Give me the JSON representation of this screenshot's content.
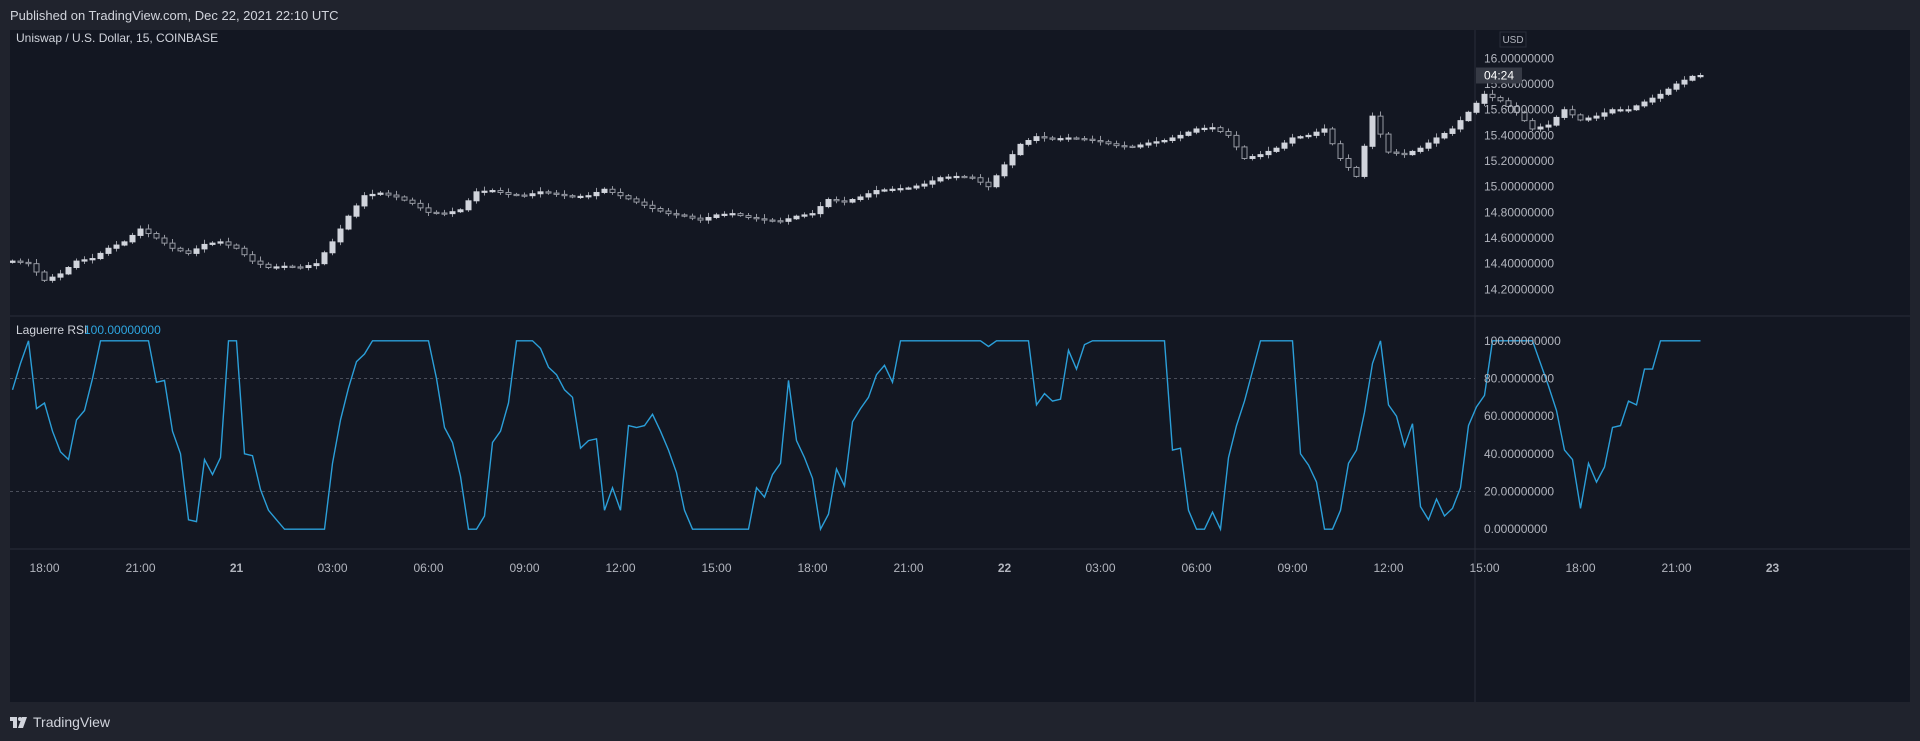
{
  "header": {
    "published": "Published on TradingView.com, Dec 22, 2021 22:10 UTC"
  },
  "footer": {
    "brand": "TradingView"
  },
  "colors": {
    "background": "#131722",
    "frame": "#20232d",
    "candle": "#d1d4dc",
    "rsi_line": "#2b9fd9",
    "rsi_value": "#2ea6e0",
    "text": "#b2b5be",
    "grid_dashed": "#4a4e5a"
  },
  "chart_data": [
    {
      "type": "candlestick",
      "title": "Uniswap / U.S. Dollar, 15, COINBASE",
      "currency": "USD",
      "countdown": "04:24",
      "ylim": [
        14.07,
        16.05
      ],
      "y_ticks": [
        "14.20000000",
        "14.40000000",
        "14.60000000",
        "14.80000000",
        "15.00000000",
        "15.20000000",
        "15.40000000",
        "15.60000000",
        "15.80000000",
        "16.00000000"
      ],
      "close_anchors": [
        [
          0,
          14.42
        ],
        [
          2,
          14.4
        ],
        [
          4,
          14.27
        ],
        [
          6,
          14.32
        ],
        [
          8,
          14.42
        ],
        [
          10,
          14.44
        ],
        [
          12,
          14.52
        ],
        [
          14,
          14.57
        ],
        [
          16,
          14.67
        ],
        [
          18,
          14.6
        ],
        [
          20,
          14.52
        ],
        [
          22,
          14.48
        ],
        [
          24,
          14.55
        ],
        [
          26,
          14.57
        ],
        [
          28,
          14.52
        ],
        [
          30,
          14.42
        ],
        [
          32,
          14.37
        ],
        [
          34,
          14.38
        ],
        [
          36,
          14.37
        ],
        [
          38,
          14.4
        ],
        [
          40,
          14.57
        ],
        [
          42,
          14.77
        ],
        [
          44,
          14.93
        ],
        [
          46,
          14.95
        ],
        [
          48,
          14.92
        ],
        [
          50,
          14.87
        ],
        [
          52,
          14.8
        ],
        [
          54,
          14.79
        ],
        [
          56,
          14.82
        ],
        [
          58,
          14.96
        ],
        [
          60,
          14.97
        ],
        [
          62,
          14.94
        ],
        [
          64,
          14.93
        ],
        [
          66,
          14.96
        ],
        [
          68,
          14.94
        ],
        [
          70,
          14.92
        ],
        [
          72,
          14.93
        ],
        [
          74,
          14.98
        ],
        [
          76,
          14.93
        ],
        [
          78,
          14.88
        ],
        [
          80,
          14.83
        ],
        [
          82,
          14.79
        ],
        [
          84,
          14.77
        ],
        [
          86,
          14.74
        ],
        [
          88,
          14.78
        ],
        [
          90,
          14.79
        ],
        [
          92,
          14.76
        ],
        [
          94,
          14.74
        ],
        [
          96,
          14.73
        ],
        [
          98,
          14.77
        ],
        [
          100,
          14.79
        ],
        [
          102,
          14.9
        ],
        [
          104,
          14.88
        ],
        [
          106,
          14.92
        ],
        [
          108,
          14.97
        ],
        [
          110,
          14.98
        ],
        [
          112,
          14.99
        ],
        [
          114,
          15.02
        ],
        [
          116,
          15.07
        ],
        [
          118,
          15.08
        ],
        [
          120,
          15.07
        ],
        [
          122,
          15.0
        ],
        [
          124,
          15.17
        ],
        [
          126,
          15.33
        ],
        [
          128,
          15.39
        ],
        [
          130,
          15.37
        ],
        [
          132,
          15.38
        ],
        [
          134,
          15.37
        ],
        [
          136,
          15.35
        ],
        [
          138,
          15.32
        ],
        [
          140,
          15.31
        ],
        [
          142,
          15.34
        ],
        [
          144,
          15.36
        ],
        [
          146,
          15.4
        ],
        [
          148,
          15.45
        ],
        [
          150,
          15.46
        ],
        [
          152,
          15.4
        ],
        [
          154,
          15.22
        ],
        [
          156,
          15.25
        ],
        [
          158,
          15.3
        ],
        [
          160,
          15.38
        ],
        [
          162,
          15.4
        ],
        [
          164,
          15.45
        ],
        [
          166,
          15.22
        ],
        [
          168,
          15.08
        ],
        [
          170,
          15.55
        ],
        [
          172,
          15.27
        ],
        [
          174,
          15.25
        ],
        [
          176,
          15.3
        ],
        [
          178,
          15.38
        ],
        [
          180,
          15.45
        ],
        [
          182,
          15.58
        ],
        [
          184,
          15.72
        ],
        [
          186,
          15.67
        ],
        [
          188,
          15.58
        ],
        [
          190,
          15.45
        ],
        [
          192,
          15.48
        ],
        [
          194,
          15.6
        ],
        [
          196,
          15.52
        ],
        [
          198,
          15.55
        ],
        [
          200,
          15.6
        ],
        [
          202,
          15.6
        ],
        [
          204,
          15.66
        ],
        [
          206,
          15.72
        ],
        [
          208,
          15.8
        ],
        [
          210,
          15.86
        ]
      ],
      "x_ticks": [
        "18:00",
        "21:00",
        "21",
        "03:00",
        "06:00",
        "09:00",
        "12:00",
        "15:00",
        "18:00",
        "21:00",
        "22",
        "03:00",
        "06:00",
        "09:00",
        "12:00",
        "15:00",
        "18:00",
        "21:00",
        "23"
      ],
      "x_ticks_bold": [
        "21",
        "22",
        "23"
      ],
      "x_tick_bars": [
        4,
        16,
        28,
        40,
        52,
        64,
        76,
        88,
        100,
        112,
        124,
        136,
        148,
        160,
        172,
        184,
        196,
        208,
        220
      ],
      "bars": 212
    },
    {
      "type": "line",
      "title": "Laguerre RSI",
      "last_value": "100.00000000",
      "ylim": [
        -10,
        110
      ],
      "y_ticks": [
        "0.00000000",
        "20.00000000",
        "40.00000000",
        "60.00000000",
        "80.00000000",
        "100.00000000"
      ],
      "levels": [
        80,
        20
      ],
      "values_anchors": [
        [
          0,
          74
        ],
        [
          1,
          88
        ],
        [
          2,
          100
        ],
        [
          3,
          64
        ],
        [
          4,
          67
        ],
        [
          5,
          52
        ],
        [
          6,
          41
        ],
        [
          7,
          37
        ],
        [
          8,
          58
        ],
        [
          9,
          63
        ],
        [
          10,
          80
        ],
        [
          11,
          100
        ],
        [
          17,
          100
        ],
        [
          18,
          78
        ],
        [
          19,
          79
        ],
        [
          20,
          52
        ],
        [
          21,
          40
        ],
        [
          22,
          5
        ],
        [
          23,
          4
        ],
        [
          24,
          37
        ],
        [
          25,
          29
        ],
        [
          26,
          38
        ],
        [
          27,
          100
        ],
        [
          28,
          100
        ],
        [
          29,
          40
        ],
        [
          30,
          39
        ],
        [
          31,
          21
        ],
        [
          32,
          10
        ],
        [
          33,
          5
        ],
        [
          34,
          0
        ],
        [
          39,
          0
        ],
        [
          40,
          35
        ],
        [
          41,
          58
        ],
        [
          42,
          75
        ],
        [
          43,
          89
        ],
        [
          44,
          93
        ],
        [
          45,
          100
        ],
        [
          52,
          100
        ],
        [
          53,
          80
        ],
        [
          54,
          54
        ],
        [
          55,
          46
        ],
        [
          56,
          28
        ],
        [
          57,
          0
        ],
        [
          58,
          0
        ],
        [
          59,
          7
        ],
        [
          60,
          46
        ],
        [
          61,
          52
        ],
        [
          62,
          67
        ],
        [
          63,
          100
        ],
        [
          65,
          100
        ],
        [
          66,
          96
        ],
        [
          67,
          86
        ],
        [
          68,
          82
        ],
        [
          69,
          74
        ],
        [
          70,
          70
        ],
        [
          71,
          43
        ],
        [
          72,
          47
        ],
        [
          73,
          48
        ],
        [
          74,
          10
        ],
        [
          75,
          22
        ],
        [
          76,
          10
        ],
        [
          77,
          55
        ],
        [
          78,
          54
        ],
        [
          79,
          55
        ],
        [
          80,
          61
        ],
        [
          81,
          52
        ],
        [
          82,
          42
        ],
        [
          83,
          30
        ],
        [
          84,
          10
        ],
        [
          85,
          0
        ],
        [
          92,
          0
        ],
        [
          93,
          22
        ],
        [
          94,
          17
        ],
        [
          95,
          29
        ],
        [
          96,
          35
        ],
        [
          97,
          79
        ],
        [
          98,
          47
        ],
        [
          99,
          38
        ],
        [
          100,
          27
        ],
        [
          101,
          0
        ],
        [
          102,
          8
        ],
        [
          103,
          32
        ],
        [
          104,
          23
        ],
        [
          105,
          57
        ],
        [
          106,
          64
        ],
        [
          107,
          70
        ],
        [
          108,
          82
        ],
        [
          109,
          87
        ],
        [
          110,
          78
        ],
        [
          111,
          100
        ],
        [
          121,
          100
        ],
        [
          122,
          97
        ],
        [
          123,
          100
        ],
        [
          127,
          100
        ],
        [
          128,
          66
        ],
        [
          129,
          72
        ],
        [
          130,
          68
        ],
        [
          131,
          69
        ],
        [
          132,
          95
        ],
        [
          133,
          85
        ],
        [
          134,
          98
        ],
        [
          135,
          100
        ],
        [
          144,
          100
        ],
        [
          145,
          42
        ],
        [
          146,
          43
        ],
        [
          147,
          10
        ],
        [
          148,
          0
        ],
        [
          149,
          0
        ],
        [
          150,
          9
        ],
        [
          151,
          0
        ],
        [
          152,
          38
        ],
        [
          153,
          55
        ],
        [
          154,
          68
        ],
        [
          155,
          84
        ],
        [
          156,
          100
        ],
        [
          160,
          100
        ],
        [
          161,
          40
        ],
        [
          162,
          34
        ],
        [
          163,
          25
        ],
        [
          164,
          0
        ],
        [
          165,
          0
        ],
        [
          166,
          10
        ],
        [
          167,
          35
        ],
        [
          168,
          42
        ],
        [
          169,
          62
        ],
        [
          170,
          88
        ],
        [
          171,
          100
        ],
        [
          172,
          66
        ],
        [
          173,
          60
        ],
        [
          174,
          44
        ],
        [
          175,
          56
        ],
        [
          176,
          12
        ],
        [
          177,
          5
        ],
        [
          178,
          16
        ],
        [
          179,
          7
        ],
        [
          180,
          11
        ],
        [
          181,
          22
        ],
        [
          182,
          55
        ],
        [
          183,
          65
        ],
        [
          184,
          71
        ],
        [
          185,
          100
        ],
        [
          190,
          100
        ],
        [
          191,
          88
        ],
        [
          192,
          76
        ],
        [
          193,
          63
        ],
        [
          194,
          42
        ],
        [
          195,
          37
        ],
        [
          196,
          11
        ],
        [
          197,
          35
        ],
        [
          198,
          25
        ],
        [
          199,
          33
        ],
        [
          200,
          54
        ],
        [
          201,
          55
        ],
        [
          202,
          68
        ],
        [
          203,
          66
        ],
        [
          204,
          85
        ],
        [
          205,
          85
        ],
        [
          206,
          100
        ],
        [
          211,
          100
        ]
      ]
    }
  ]
}
